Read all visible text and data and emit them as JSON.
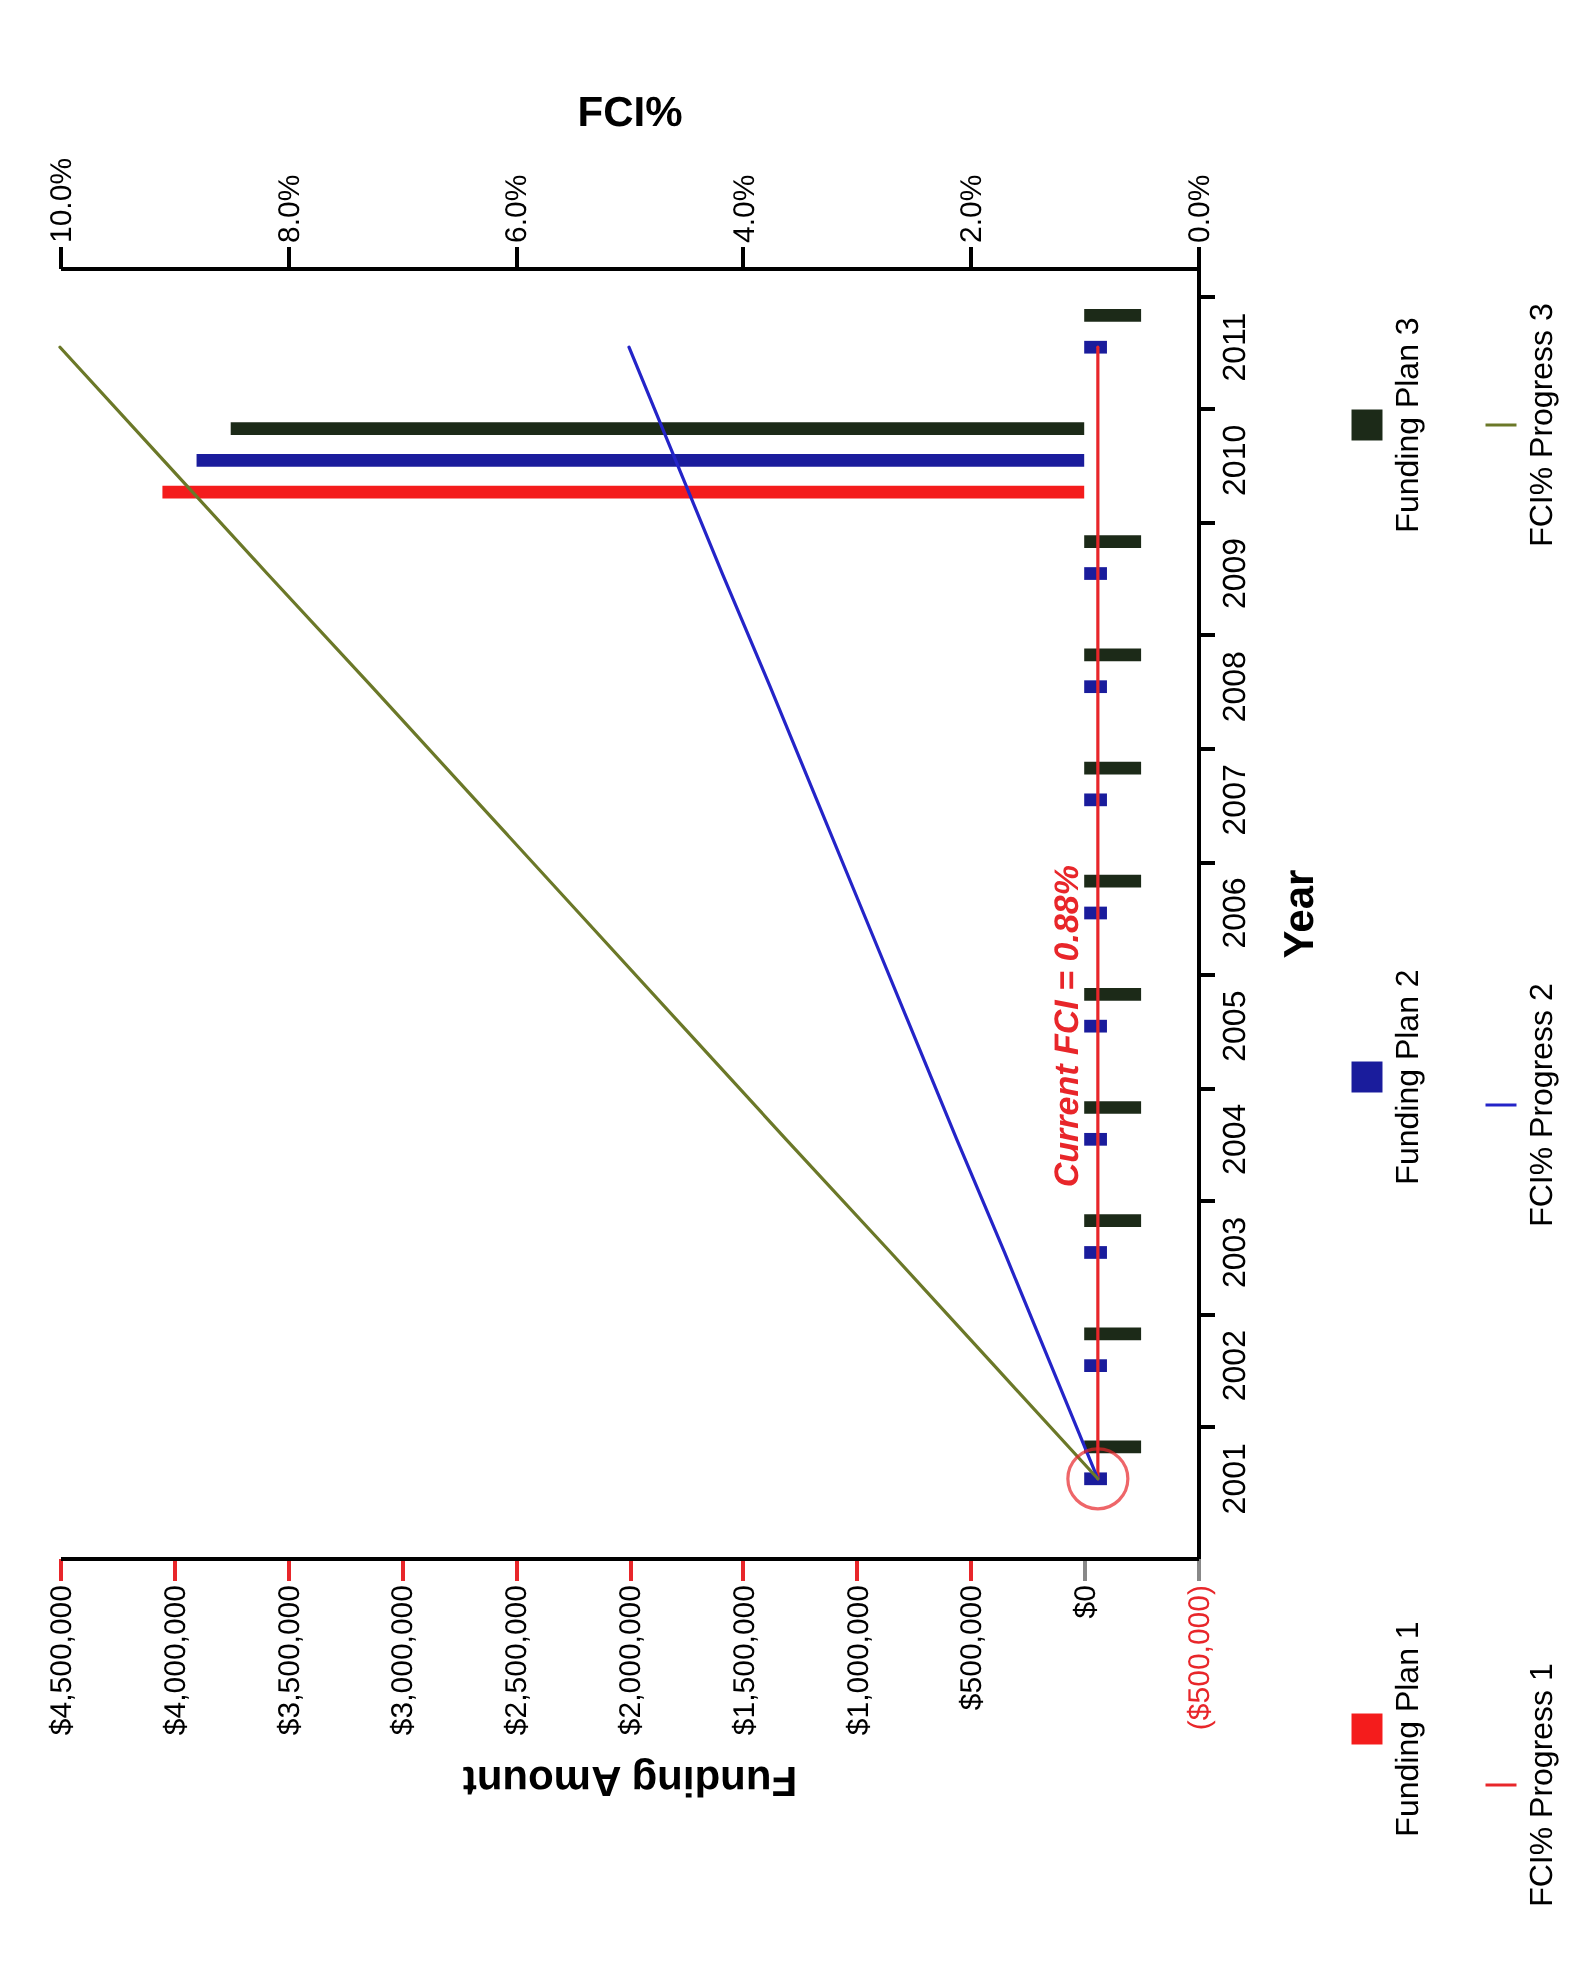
{
  "chart_data": {
    "type": "bar",
    "orientation": "horizontal",
    "categories": [
      "2011",
      "2010",
      "2009",
      "2008",
      "2007",
      "2006",
      "2005",
      "2004",
      "2003",
      "2002",
      "2001"
    ],
    "series": [
      {
        "name": "Funding Plan 1",
        "color": "#f41c1c",
        "values": [
          0,
          4050000,
          0,
          0,
          0,
          0,
          0,
          0,
          0,
          0,
          0
        ]
      },
      {
        "name": "Funding Plan 2",
        "color": "#1a1c9c",
        "values": [
          -100000,
          3900000,
          -100000,
          -100000,
          -100000,
          -100000,
          -100000,
          -100000,
          -100000,
          -100000,
          -100000
        ]
      },
      {
        "name": "Funding Plan 3",
        "color": "#1c2a18",
        "values": [
          -250000,
          3750000,
          -250000,
          -250000,
          -250000,
          -250000,
          -250000,
          -250000,
          -250000,
          -250000,
          -250000
        ]
      },
      {
        "name": "FCI% Progress 1",
        "type": "line",
        "axis": "x2",
        "color": "#e8262a",
        "values": [
          0.88,
          0.88,
          0.88,
          0.88,
          0.88,
          0.88,
          0.88,
          0.88,
          0.88,
          0.88,
          0.88
        ]
      },
      {
        "name": "FCI% Progress 2",
        "type": "line",
        "axis": "x2",
        "color": "#2424c8",
        "values": [
          5.0,
          4.59,
          4.18,
          3.76,
          3.35,
          2.94,
          2.53,
          2.12,
          1.7,
          1.29,
          0.88
        ]
      },
      {
        "name": "FCI% Progress 3",
        "type": "line",
        "axis": "x2",
        "color": "#6b7828",
        "values": [
          10.0,
          9.09,
          8.18,
          7.26,
          6.35,
          5.44,
          4.53,
          3.62,
          2.7,
          1.79,
          0.88
        ]
      }
    ],
    "ylabel": "Year",
    "xlabel": "Funding Amount",
    "x2label": "FCI%",
    "xlim": [
      4500000,
      -500000
    ],
    "xticks": [
      {
        "value": -500000,
        "label": "($500,000)"
      },
      {
        "value": 0,
        "label": "$0"
      },
      {
        "value": 500000,
        "label": "$500,000"
      },
      {
        "value": 1000000,
        "label": "$1,000,000"
      },
      {
        "value": 1500000,
        "label": "$1,500,000"
      },
      {
        "value": 2000000,
        "label": "$2,000,000"
      },
      {
        "value": 2500000,
        "label": "$2,500,000"
      },
      {
        "value": 3000000,
        "label": "$3,000,000"
      },
      {
        "value": 3500000,
        "label": "$3,500,000"
      },
      {
        "value": 4000000,
        "label": "$4,000,000"
      },
      {
        "value": 4500000,
        "label": "$4,500,000"
      }
    ],
    "x2lim": [
      10,
      0
    ],
    "x2ticks": [
      {
        "value": 0,
        "label": "0.0%"
      },
      {
        "value": 2,
        "label": "2.0%"
      },
      {
        "value": 4,
        "label": "4.0%"
      },
      {
        "value": 6,
        "label": "6.0%"
      },
      {
        "value": 8,
        "label": "8.0%"
      },
      {
        "value": 10,
        "label": "10.0%"
      }
    ],
    "annotations": [
      {
        "text": "Current FCI = 0.88%",
        "x": 0.88,
        "y": "2005"
      }
    ],
    "legend": "right"
  }
}
